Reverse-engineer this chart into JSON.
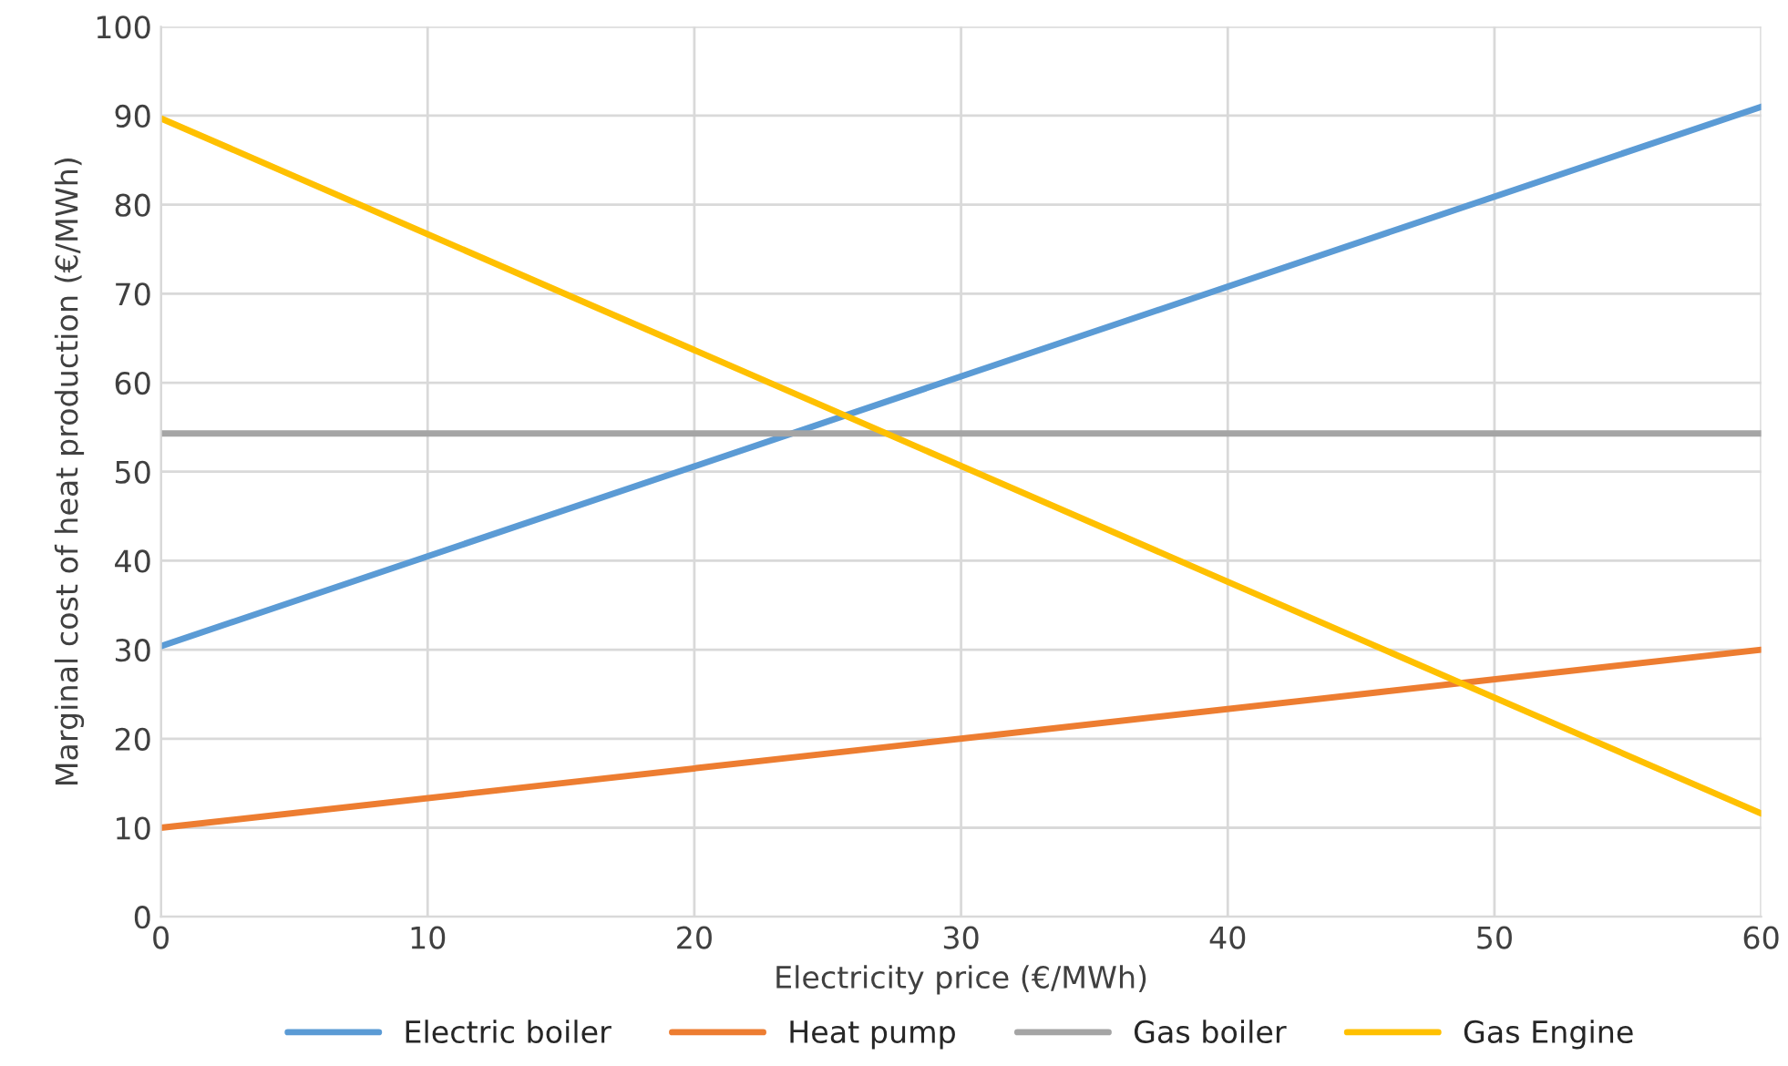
{
  "chart_data": {
    "type": "line",
    "xlabel": "Electricity price (€/MWh)",
    "ylabel": "Marginal cost of heat production (€/MWh)",
    "x": [
      0,
      60
    ],
    "series": [
      {
        "name": "Electric boiler",
        "color": "#5b9bd5",
        "values": [
          30.4,
          91
        ]
      },
      {
        "name": "Heat pump",
        "color": "#ed7d31",
        "values": [
          10,
          30
        ]
      },
      {
        "name": "Gas boiler",
        "color": "#a5a5a5",
        "values": [
          54.3,
          54.3
        ]
      },
      {
        "name": "Gas Engine",
        "color": "#ffc000",
        "values": [
          89.7,
          11.6
        ]
      }
    ],
    "xlim": [
      0,
      60
    ],
    "xticks": [
      0,
      10,
      20,
      30,
      40,
      50,
      60
    ],
    "ylim": [
      0,
      100
    ],
    "yticks": [
      0,
      10,
      20,
      30,
      40,
      50,
      60,
      70,
      80,
      90,
      100
    ],
    "grid": true,
    "legend": "bottom",
    "marker": "none",
    "line_style": "solid"
  }
}
